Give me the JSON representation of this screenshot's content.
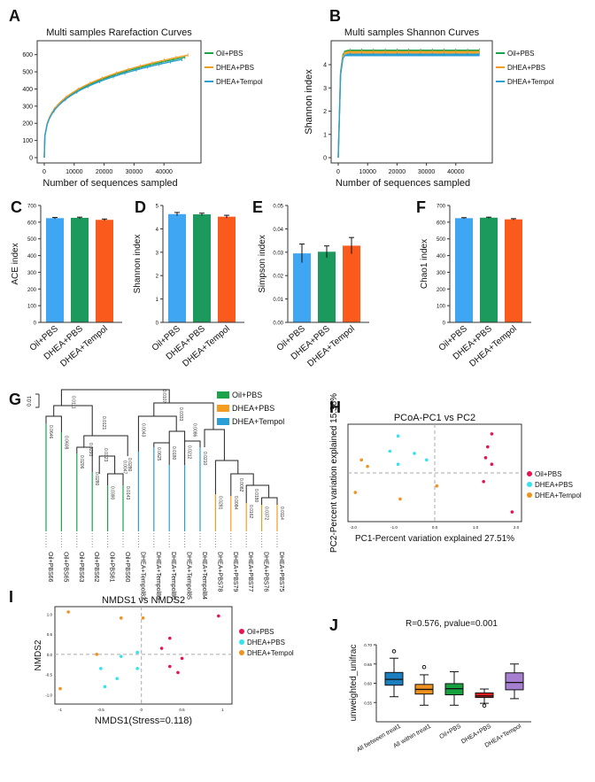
{
  "colors": {
    "green": "#1aa34a",
    "orange": "#f39c1f",
    "blue": "#2a9fd6",
    "bar_blue": "#3ea6f2",
    "bar_green": "#1c9a5e",
    "bar_orange": "#fb5a1d",
    "pcoa_red": "#e8134f",
    "pcoa_cyan": "#34e3ec",
    "pcoa_orange": "#f2921e"
  },
  "chart_data": [
    {
      "panel": "A",
      "type": "line",
      "title": "Multi samples Rarefaction Curves",
      "xlabel": "Number of sequences sampled",
      "ylabel": "",
      "xlim": [
        0,
        50000
      ],
      "ylim": [
        0,
        650
      ],
      "xticks": [
        "0",
        "10000",
        "20000",
        "30000",
        "40000"
      ],
      "yticks": [
        "0",
        "100",
        "200",
        "300",
        "400",
        "500",
        "600"
      ],
      "legend": [
        "Oil+PBS",
        "DHEA+PBS",
        "DHEA+Tempol"
      ],
      "series": [
        {
          "name": "Oil+PBS",
          "color_key": "green",
          "final": 585,
          "end_x": 47000
        },
        {
          "name": "DHEA+PBS",
          "color_key": "orange",
          "final": 597,
          "end_x": 48000
        },
        {
          "name": "DHEA+Tempol",
          "color_key": "blue",
          "final": 572,
          "end_x": 46000
        }
      ]
    },
    {
      "panel": "B",
      "type": "line",
      "title": "Multi samples Shannon Curves",
      "xlabel": "Number of sequences sampled",
      "ylabel": "Shannon index",
      "xlim": [
        0,
        50000
      ],
      "ylim": [
        0,
        4.8
      ],
      "xticks": [
        "0",
        "10000",
        "20000",
        "30000",
        "40000"
      ],
      "yticks": [
        "0",
        "1",
        "2",
        "3",
        "4"
      ],
      "legend": [
        "Oil+PBS",
        "DHEA+PBS",
        "DHEA+Tempol"
      ],
      "series": [
        {
          "name": "Oil+PBS",
          "color_key": "green",
          "values": [
            4.62,
            4.58,
            4.55
          ]
        },
        {
          "name": "DHEA+PBS",
          "color_key": "orange",
          "values": [
            4.56,
            4.52,
            4.48
          ]
        },
        {
          "name": "DHEA+Tempol",
          "color_key": "blue",
          "values": [
            4.45,
            4.42,
            4.38
          ]
        }
      ]
    },
    {
      "panel": "C",
      "type": "bar",
      "ylabel": "ACE index",
      "ylim": [
        0,
        700
      ],
      "yticks": [
        "0",
        "100",
        "200",
        "300",
        "400",
        "500",
        "600",
        "700"
      ],
      "categories": [
        "Oil+PBS",
        "DHEA+PBS",
        "DHEA+Tempol"
      ],
      "values": [
        624,
        626,
        614
      ],
      "errors": [
        4,
        4,
        5
      ]
    },
    {
      "panel": "D",
      "type": "bar",
      "ylabel": "Shannon index",
      "ylim": [
        0,
        5
      ],
      "yticks": [
        "0",
        "1",
        "2",
        "3",
        "4",
        "5"
      ],
      "categories": [
        "Oil+PBS",
        "DHEA+PBS",
        "DHEA+Tempol"
      ],
      "values": [
        4.63,
        4.62,
        4.52
      ],
      "errors": [
        0.07,
        0.05,
        0.06
      ]
    },
    {
      "panel": "E",
      "type": "bar",
      "ylabel": "Simpson index",
      "ylim": [
        0,
        0.05
      ],
      "yticks": [
        "0.00",
        "0.01",
        "0.02",
        "0.03",
        "0.04",
        "0.05"
      ],
      "categories": [
        "Oil+PBS",
        "DHEA+PBS",
        "DHEA+Tempol"
      ],
      "values": [
        0.0295,
        0.0302,
        0.0328
      ],
      "errors": [
        0.004,
        0.0025,
        0.0035
      ]
    },
    {
      "panel": "F",
      "type": "bar",
      "ylabel": "Chao1 index",
      "ylim": [
        0,
        700
      ],
      "yticks": [
        "0",
        "100",
        "200",
        "300",
        "400",
        "500",
        "600",
        "700"
      ],
      "categories": [
        "Oil+PBS",
        "DHEA+PBS",
        "DHEA+Tempol"
      ],
      "values": [
        624,
        627,
        617
      ],
      "errors": [
        3,
        3,
        4
      ]
    },
    {
      "panel": "G",
      "type": "dendrogram",
      "scale_label": "0.01",
      "legend": [
        "Oil+PBS",
        "DHEA+PBS",
        "DHEA+Tempol"
      ],
      "leaves": [
        "Oil+PBS66",
        "Oil+PBS65",
        "Oil+PBS63",
        "Oil+PBS62",
        "Oil+PBS61",
        "Oil+PBS60",
        "DHEA+Tempol82",
        "DHEA+Tempol80",
        "DHEA+Tempol86",
        "DHEA+Tempol85",
        "DHEA+Tempol84",
        "DHEA+PBS78",
        "DHEA+PBS79",
        "DHEA+PBS77",
        "DHEA+PBS76",
        "DHEA+PBS75"
      ],
      "leaf_groups": [
        "green",
        "green",
        "green",
        "green",
        "green",
        "green",
        "blue",
        "blue",
        "blue",
        "blue",
        "blue",
        "orange",
        "orange",
        "orange",
        "orange",
        "orange"
      ],
      "branch_labels": [
        "0.0646",
        "0.0608",
        "0.0206",
        "0.0280",
        "0.0390",
        "0.0143",
        "0.0293",
        "0.0323",
        "0.0047",
        "0.0043",
        "0.0625",
        "0.0180",
        "0.0212",
        "0.0210",
        "0.0281",
        "0.0084",
        "0.0162",
        "0.0372",
        "0.0114",
        "0.0082",
        "0.0180",
        "0.0086",
        "0.0333",
        "0.0121",
        "0.0111",
        "0.0107",
        "0.0280"
      ]
    },
    {
      "panel": "H",
      "type": "scatter",
      "title": "PCoA-PC1 vs PC2",
      "xlabel": "PC1-Percent variation explained 27.51%",
      "ylabel": "PC2-Percent variation explained 15.36%",
      "xlim": [
        -2.0,
        2.0
      ],
      "ylim": [
        -2.0,
        2.0
      ],
      "xticks": [
        "-2.0",
        "-1.0",
        "0.0",
        "1.0",
        "2.0"
      ],
      "legend": [
        "Oil+PBS",
        "DHEA+PBS",
        "DHEA+Tempol"
      ],
      "series": [
        {
          "name": "Oil+PBS",
          "color_key": "pcoa_red",
          "x": [
            1.4,
            1.3,
            1.25,
            1.4,
            1.2,
            1.9
          ],
          "y": [
            1.8,
            1.2,
            0.7,
            0.4,
            -0.4,
            -1.8
          ]
        },
        {
          "name": "DHEA+PBS",
          "color_key": "pcoa_cyan",
          "x": [
            -0.9,
            -1.1,
            -0.5,
            -0.9,
            -0.2
          ],
          "y": [
            1.7,
            1.0,
            0.9,
            0.4,
            0.6
          ]
        },
        {
          "name": "DHEA+Tempol",
          "color_key": "pcoa_orange",
          "x": [
            -1.8,
            -1.65,
            -1.95,
            0.05,
            -0.85
          ],
          "y": [
            0.6,
            0.3,
            -0.9,
            -0.6,
            -1.2
          ]
        }
      ]
    },
    {
      "panel": "I",
      "type": "scatter",
      "title": "NMDS1 vs NMDS2",
      "xlabel": "NMDS1(Stress=0.118)",
      "ylabel": "NMDS2",
      "xlim": [
        -1.0,
        1.05
      ],
      "ylim": [
        -1.1,
        1.05
      ],
      "xticks": [
        "-1",
        "-0.5",
        "0",
        "0.5",
        "1"
      ],
      "yticks": [
        "1.0",
        "0.5",
        "0.0",
        "-0.5",
        "-1.0"
      ],
      "legend": [
        "Oil+PBS",
        "DHEA+PBS",
        "DHEA+Tempol"
      ],
      "series": [
        {
          "name": "Oil+PBS",
          "color_key": "pcoa_red",
          "x": [
            0.95,
            0.35,
            0.25,
            0.5,
            0.35,
            0.45
          ],
          "y": [
            0.95,
            0.4,
            0.15,
            -0.1,
            -0.3,
            -0.45
          ]
        },
        {
          "name": "DHEA+PBS",
          "color_key": "pcoa_cyan",
          "x": [
            -0.05,
            -0.25,
            -0.05,
            -0.5,
            -0.3,
            -0.45
          ],
          "y": [
            0.05,
            -0.05,
            -0.35,
            -0.35,
            -0.6,
            -0.8
          ]
        },
        {
          "name": "DHEA+Tempol",
          "color_key": "pcoa_orange",
          "x": [
            -0.9,
            -0.25,
            0.02,
            -0.55,
            -1.0
          ],
          "y": [
            1.05,
            0.9,
            0.9,
            0.0,
            -0.85
          ]
        }
      ]
    },
    {
      "panel": "J",
      "type": "boxplot",
      "title": "R=0.576, pvalue=0.001",
      "ylabel": "unweighted_unifrac",
      "ylim": [
        0.5,
        0.7
      ],
      "yticks": [
        "0.55",
        "0.60",
        "0.65",
        "0.70"
      ],
      "categories": [
        "All between treat1",
        "All within treat1",
        "Oil+PBS",
        "DHEA+PBS",
        "DHEA+Tempol"
      ],
      "box_colors": [
        "#1b7fbf",
        "#f2921e",
        "#16a03e",
        "#e81e1e",
        "#a77fd0"
      ],
      "boxes": [
        {
          "min": 0.565,
          "q1": 0.595,
          "median": 0.61,
          "q3": 0.628,
          "max": 0.665,
          "outliers": [
            0.683
          ]
        },
        {
          "min": 0.543,
          "q1": 0.572,
          "median": 0.584,
          "q3": 0.597,
          "max": 0.622,
          "outliers": [
            0.642
          ]
        },
        {
          "min": 0.543,
          "q1": 0.57,
          "median": 0.586,
          "q3": 0.599,
          "max": 0.63,
          "outliers": []
        },
        {
          "min": 0.548,
          "q1": 0.563,
          "median": 0.567,
          "q3": 0.575,
          "max": 0.585,
          "outliers": [
            0.542
          ]
        },
        {
          "min": 0.56,
          "q1": 0.583,
          "median": 0.602,
          "q3": 0.627,
          "max": 0.65,
          "outliers": []
        }
      ]
    }
  ]
}
